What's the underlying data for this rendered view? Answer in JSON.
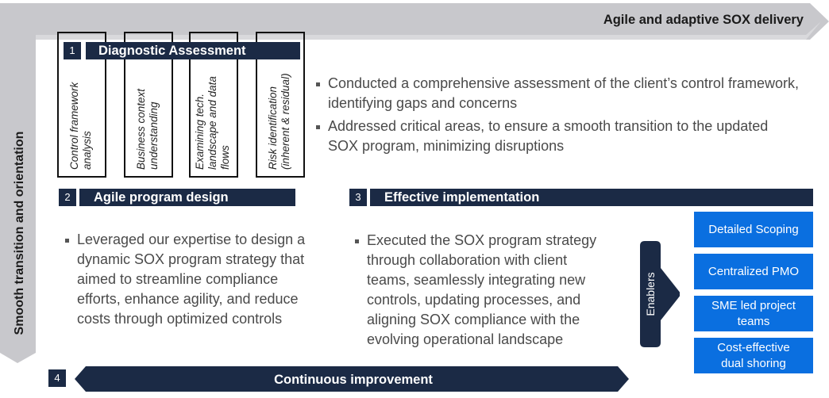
{
  "frame": {
    "top_title": "Agile and adaptive SOX delivery",
    "side_title": "Smooth transition and orientation"
  },
  "sections": {
    "s1": {
      "number": "1",
      "title": "Diagnostic Assessment"
    },
    "s2": {
      "number": "2",
      "title": "Agile program design"
    },
    "s3": {
      "number": "3",
      "title": "Effective implementation"
    },
    "s4": {
      "number": "4",
      "title": "Continuous improvement"
    }
  },
  "pillars": [
    {
      "line1": "Control framework",
      "line2": "analysis",
      "line3": ""
    },
    {
      "line1": "Business context",
      "line2": "understanding",
      "line3": ""
    },
    {
      "line1": "Examining tech.",
      "line2": "landscape and data",
      "line3": "flows"
    },
    {
      "line1": "Risk identification",
      "line2": "(inherent & residual)",
      "line3": ""
    }
  ],
  "diagnostic_bullets": [
    "Conducted a comprehensive assessment of the client’s control framework, identifying gaps and concerns",
    "Addressed critical areas, to ensure a smooth transition to the updated SOX program, minimizing disruptions"
  ],
  "agile_bullets": [
    "Leveraged our expertise to design a dynamic SOX program strategy that aimed to streamline compliance efforts, enhance agility, and reduce costs through optimized controls"
  ],
  "implementation_bullets": [
    "Executed the SOX program strategy through collaboration with client teams, seamlessly integrating new controls, updating processes, and aligning SOX compliance with the evolving operational landscape"
  ],
  "enablers": {
    "label": "Enablers",
    "items": [
      {
        "line1": "Detailed Scoping",
        "line2": ""
      },
      {
        "line1": "Centralized PMO",
        "line2": ""
      },
      {
        "line1": "SME led project",
        "line2": "teams"
      },
      {
        "line1": "Cost-effective",
        "line2": "dual shoring"
      }
    ]
  },
  "colors": {
    "navy": "#1b2a45",
    "blue": "#0a6fe0",
    "frame_gray": "#c8c8cc"
  }
}
